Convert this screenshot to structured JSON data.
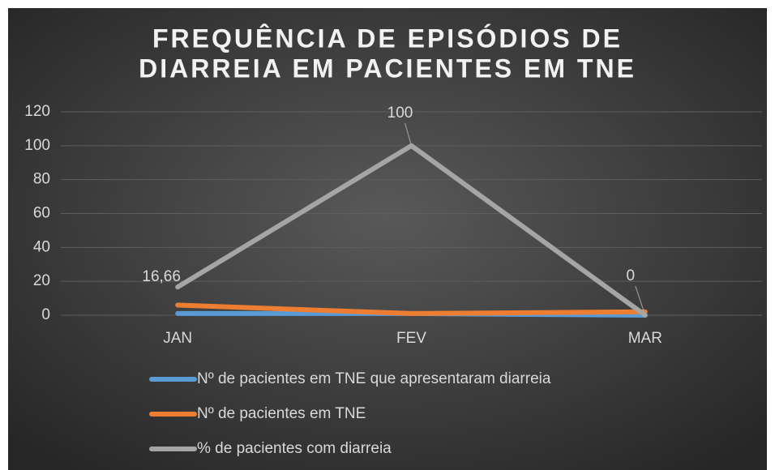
{
  "chart_data": {
    "type": "line",
    "title": [
      "FREQUÊNCIA DE EPISÓDIOS DE",
      "DIARREIA EM PACIENTES EM TNE"
    ],
    "categories": [
      "JAN",
      "FEV",
      "MAR"
    ],
    "series": [
      {
        "name": "Nº de pacientes em TNE que apresentaram diarreia",
        "color": "#5b9bd5",
        "values": [
          1,
          1,
          0
        ]
      },
      {
        "name": "Nº de pacientes em TNE",
        "color": "#ed7d31",
        "values": [
          6,
          1,
          2
        ]
      },
      {
        "name": "% de pacientes com diarreia",
        "color": "#a5a5a5",
        "values": [
          16.66,
          100,
          0
        ],
        "value_labels": [
          "16,66",
          "100",
          "0"
        ]
      }
    ],
    "ylim": [
      0,
      120
    ],
    "yticks": [
      0,
      20,
      40,
      60,
      80,
      100,
      120
    ],
    "grid": true,
    "legend": "bottom"
  }
}
